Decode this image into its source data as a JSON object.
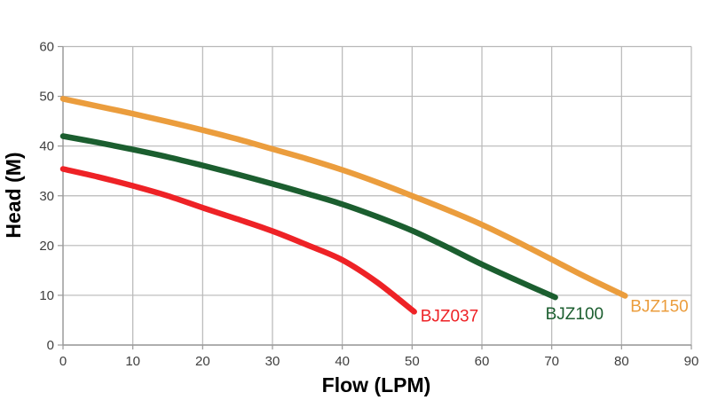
{
  "chart_data": {
    "type": "line",
    "title": "",
    "xlabel": "Flow (LPM)",
    "ylabel": "Head (M)",
    "xlim": [
      0,
      90
    ],
    "ylim": [
      0,
      60
    ],
    "x_ticks": [
      0,
      10,
      20,
      30,
      40,
      50,
      60,
      70,
      80,
      90
    ],
    "y_ticks": [
      0,
      10,
      20,
      30,
      40,
      50,
      60
    ],
    "grid": true,
    "legend_position": "labels-at-curve-ends",
    "series": [
      {
        "name": "BJZ037",
        "color": "#ee2226",
        "points": [
          [
            0,
            35.4
          ],
          [
            5,
            33.8
          ],
          [
            10,
            32.0
          ],
          [
            15,
            30.0
          ],
          [
            20,
            27.6
          ],
          [
            25,
            25.3
          ],
          [
            30,
            22.9
          ],
          [
            35,
            20.1
          ],
          [
            40,
            17.1
          ],
          [
            45,
            12.6
          ],
          [
            50.3,
            6.7
          ]
        ]
      },
      {
        "name": "BJZ100",
        "color": "#1b5e2f",
        "points": [
          [
            0,
            42.0
          ],
          [
            5,
            40.7
          ],
          [
            10,
            39.3
          ],
          [
            15,
            37.8
          ],
          [
            20,
            36.1
          ],
          [
            25,
            34.3
          ],
          [
            30,
            32.4
          ],
          [
            35,
            30.4
          ],
          [
            40,
            28.3
          ],
          [
            45,
            25.8
          ],
          [
            50,
            23.0
          ],
          [
            55,
            19.7
          ],
          [
            60,
            16.2
          ],
          [
            65,
            13.0
          ],
          [
            70.5,
            9.6
          ]
        ]
      },
      {
        "name": "BJZ150",
        "color": "#eb9d3d",
        "points": [
          [
            0,
            49.5
          ],
          [
            5,
            48.0
          ],
          [
            10,
            46.5
          ],
          [
            15,
            44.9
          ],
          [
            20,
            43.2
          ],
          [
            25,
            41.4
          ],
          [
            30,
            39.4
          ],
          [
            35,
            37.4
          ],
          [
            40,
            35.2
          ],
          [
            45,
            32.7
          ],
          [
            50,
            30.0
          ],
          [
            55,
            27.2
          ],
          [
            60,
            24.2
          ],
          [
            65,
            20.8
          ],
          [
            70,
            17.2
          ],
          [
            75,
            13.6
          ],
          [
            80.5,
            9.9
          ]
        ]
      }
    ]
  },
  "colors": {
    "background": "#ffffff",
    "grid": "#b8b8b8",
    "axis": "#9a9a9a",
    "tick_text": "#3f3f3f",
    "axis_title_text": "#000000"
  }
}
